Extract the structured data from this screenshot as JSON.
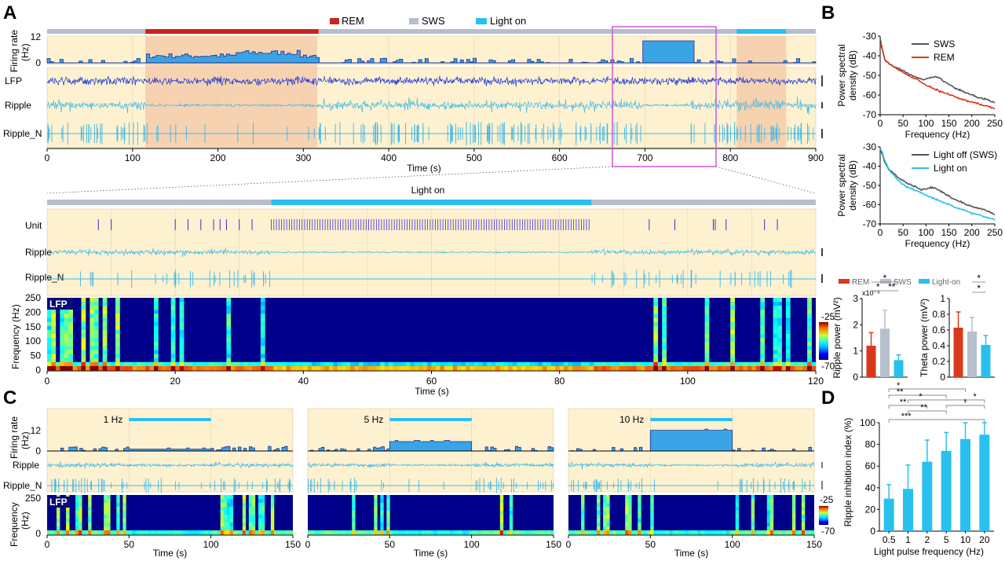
{
  "colors": {
    "rem": "#c8261b",
    "sws": "#b7bfcc",
    "light": "#29c0ee",
    "lfp": "#1430d8",
    "ripple": "#3cb9ea",
    "panel_bg": "#fdf1d0",
    "shade": "#f3c7a7",
    "box": "#d455d9",
    "bar_fill": "#3aa3e6",
    "bar_line": "#1b2e8c"
  },
  "panel_letters": {
    "a": "A",
    "b": "B",
    "c": "C",
    "d": "D"
  },
  "panel_a": {
    "legend": [
      "REM",
      "SWS",
      "Light on"
    ],
    "labels": {
      "firing_rate": "Firing rate",
      "firing_rate_unit": "(Hz)",
      "lfp": "LFP",
      "ripple": "Ripple",
      "ripple_n": "Ripple_N"
    },
    "yticks": [
      "12",
      "0"
    ],
    "time_label": "Time (s)",
    "xticks": [
      "0",
      "100",
      "200",
      "300",
      "400",
      "500",
      "600",
      "700",
      "800",
      "900"
    ],
    "states": [
      {
        "state": "SWS",
        "start": 0,
        "end": 115
      },
      {
        "state": "REM",
        "start": 115,
        "end": 318
      },
      {
        "state": "SWS",
        "start": 318,
        "end": 900
      }
    ],
    "light": {
      "start": 697,
      "end": 755
    },
    "zoom": {
      "start": 665,
      "end": 785
    },
    "inset": {
      "light_label": "Light on",
      "labels": {
        "unit": "Unit",
        "ripple": "Ripple",
        "ripple_n": "Ripple_N",
        "lfp": "LFP",
        "freq": "Frequency (Hz)"
      },
      "yticks": [
        "250",
        "200",
        "150",
        "100",
        "50",
        "0"
      ],
      "xticks": [
        "0",
        "20",
        "40",
        "60",
        "80",
        "100",
        "120"
      ],
      "time_label": "Time (s)",
      "light": {
        "start": 35,
        "end": 85
      },
      "colorbar": [
        "-25",
        "-70"
      ]
    }
  },
  "panel_b": {
    "top": {
      "ylabel1": "Power spectral",
      "ylabel2": "density (dB)",
      "xlabel": "Frequency (Hz)",
      "yticks": [
        "-30",
        "-40",
        "-50",
        "-60",
        "-70"
      ],
      "xticks": [
        "0",
        "50",
        "100",
        "150",
        "200",
        "250"
      ],
      "legend": [
        "SWS",
        "REM"
      ]
    },
    "mid": {
      "ylabel1": "Power spectral",
      "ylabel2": "density (dB)",
      "xlabel": "Frequency (Hz)",
      "yticks": [
        "-30",
        "-40",
        "-50",
        "-60",
        "-70"
      ],
      "xticks": [
        "0",
        "50",
        "100",
        "150",
        "200",
        "250"
      ],
      "legend": [
        "Light off (SWS)",
        "Light on"
      ]
    },
    "bar_legend": [
      "REM",
      "SWS",
      "Light-on"
    ],
    "ripple_chart": {
      "ylabel": "Ripple power (mV²)",
      "multiplier": "x10⁻³",
      "yticks": [
        "0",
        "1",
        "2",
        "3"
      ],
      "stars": [
        "*",
        "*",
        "**"
      ]
    },
    "theta_chart": {
      "ylabel": "Theta power (mV²)",
      "yticks": [
        "0",
        "0.2",
        "0.4",
        "0.6",
        "0.8",
        "1"
      ],
      "stars": [
        "*",
        "*"
      ]
    }
  },
  "panel_c": {
    "labels": {
      "firing_rate": "Firing rate",
      "firing_rate_unit": "(Hz)",
      "ripple": "Ripple",
      "ripple_n": "Ripple_N",
      "lfp": "LFP",
      "freq": "Frequency",
      "freq_unit": "(Hz)"
    },
    "yticks_fr": [
      "12",
      "0"
    ],
    "yticks_lfp": [
      "250",
      "0"
    ],
    "xticks": [
      "0",
      "50",
      "100",
      "150"
    ],
    "time_label": "Time (s)",
    "colorbar": [
      "-25",
      "-70"
    ],
    "subplots": [
      {
        "freq_label": "1 Hz",
        "light_start": 50,
        "light_end": 100,
        "rate_level": 1
      },
      {
        "freq_label": "5 Hz",
        "light_start": 50,
        "light_end": 100,
        "rate_level": 5
      },
      {
        "freq_label": "10 Hz",
        "light_start": 50,
        "light_end": 100,
        "rate_level": 11
      }
    ]
  },
  "panel_d": {
    "ylabel": "Ripple inhibition index (%)",
    "xlabel": "Light pulse frequency (Hz)",
    "yticks": [
      "0",
      "20",
      "40",
      "60",
      "80",
      "100"
    ],
    "stars": [
      "*",
      "**",
      "*",
      "**",
      "**",
      "***",
      "*",
      "*"
    ]
  },
  "chart_data": [
    {
      "type": "line",
      "title": "",
      "xlabel": "Frequency (Hz)",
      "ylabel": "Power spectral density (dB)",
      "xlim": [
        0,
        250
      ],
      "ylim": [
        -70,
        -30
      ],
      "x": [
        0,
        5,
        10,
        20,
        30,
        40,
        50,
        60,
        70,
        80,
        90,
        100,
        110,
        120,
        130,
        140,
        150,
        160,
        170,
        180,
        190,
        200,
        210,
        220,
        230,
        240,
        250
      ],
      "series": [
        {
          "name": "SWS",
          "values": [
            -31,
            -37,
            -42,
            -44,
            -45.5,
            -46.5,
            -47.5,
            -49,
            -50,
            -51,
            -52,
            -52,
            -51,
            -50.5,
            -51.5,
            -53,
            -54.5,
            -56,
            -57,
            -58,
            -59,
            -60,
            -61,
            -61.5,
            -62,
            -63,
            -64
          ]
        },
        {
          "name": "REM",
          "values": [
            -34,
            -37,
            -42,
            -44,
            -45.5,
            -47,
            -48.5,
            -50,
            -51,
            -52,
            -53.5,
            -55,
            -56,
            -57,
            -58,
            -59,
            -59.5,
            -60.5,
            -61.5,
            -62,
            -63,
            -63.5,
            -64,
            -65,
            -65.5,
            -66,
            -67
          ]
        }
      ]
    },
    {
      "type": "line",
      "title": "",
      "xlabel": "Frequency (Hz)",
      "ylabel": "Power spectral density (dB)",
      "xlim": [
        0,
        250
      ],
      "ylim": [
        -70,
        -30
      ],
      "x": [
        0,
        5,
        10,
        20,
        30,
        40,
        50,
        60,
        70,
        80,
        90,
        100,
        110,
        120,
        130,
        140,
        150,
        160,
        170,
        180,
        190,
        200,
        210,
        220,
        230,
        240,
        250
      ],
      "series": [
        {
          "name": "Light off (SWS)",
          "values": [
            -31,
            -34,
            -38,
            -42,
            -44,
            -46,
            -47.5,
            -49,
            -50,
            -51,
            -52,
            -52,
            -51,
            -51.5,
            -52.5,
            -54,
            -55.5,
            -57,
            -58,
            -59,
            -60,
            -61,
            -61.5,
            -62,
            -63,
            -64,
            -65
          ]
        },
        {
          "name": "Light on",
          "values": [
            -31,
            -33,
            -37,
            -42,
            -45,
            -47.5,
            -49.5,
            -51,
            -52,
            -53,
            -54,
            -55,
            -56,
            -57,
            -58,
            -59,
            -60,
            -61,
            -62,
            -62.5,
            -63.5,
            -64.5,
            -65,
            -65.5,
            -66.5,
            -67,
            -68
          ]
        }
      ]
    },
    {
      "type": "bar",
      "title": "",
      "ylabel": "Ripple power (mV²)",
      "ylim": [
        0,
        3
      ],
      "categories": [
        "REM",
        "SWS",
        "Light-on"
      ],
      "values": [
        1.2,
        1.85,
        0.65
      ],
      "errors": [
        0.5,
        0.7,
        0.2
      ]
    },
    {
      "type": "bar",
      "title": "",
      "ylabel": "Theta power (mV²)",
      "ylim": [
        0,
        1
      ],
      "categories": [
        "REM",
        "SWS",
        "Light-on"
      ],
      "values": [
        0.63,
        0.58,
        0.41
      ],
      "errors": [
        0.2,
        0.18,
        0.12
      ]
    },
    {
      "type": "bar",
      "title": "",
      "xlabel": "Light pulse frequency (Hz)",
      "ylabel": "Ripple inhibition index (%)",
      "ylim": [
        0,
        100
      ],
      "categories": [
        "0.5",
        "1",
        "2",
        "5",
        "10",
        "20"
      ],
      "values": [
        30,
        39,
        64,
        74,
        85,
        89
      ],
      "errors": [
        13,
        22,
        20,
        17,
        15,
        11
      ]
    }
  ]
}
